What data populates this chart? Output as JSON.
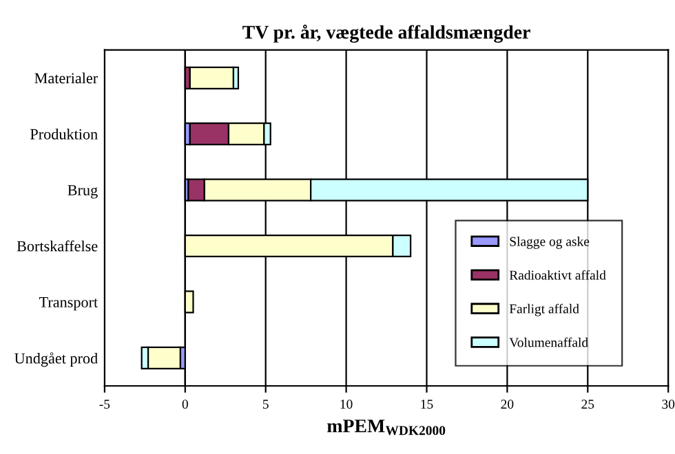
{
  "chart_data": {
    "type": "bar",
    "orientation": "horizontal",
    "stacked": true,
    "title": "TV pr. år, vægtede affaldsmængder",
    "xlabel": "mPEM$_{WDK2000}$",
    "categories": [
      "Materialer",
      "Produktion",
      "Brug",
      "Bortskaffelse",
      "Transport",
      "Undgået prod"
    ],
    "series": [
      {
        "name": "Slagge og aske",
        "color": "#9999ff",
        "values": [
          null,
          0.3,
          0.2,
          null,
          null,
          -0.3
        ]
      },
      {
        "name": "Radioaktivt affald",
        "color": "#993366",
        "values": [
          0.3,
          2.4,
          1.0,
          null,
          null,
          null
        ]
      },
      {
        "name": "Farligt affald",
        "color": "#ffffcc",
        "values": [
          2.7,
          2.2,
          6.6,
          12.9,
          0.5,
          -2.0
        ]
      },
      {
        "name": "Volumenaffald",
        "color": "#ccffff",
        "values": [
          0.3,
          0.4,
          17.2,
          1.1,
          null,
          -0.4
        ]
      }
    ],
    "xlim": [
      -5,
      30
    ],
    "xticks": [
      -5,
      0,
      5,
      10,
      15,
      20,
      25,
      30
    ],
    "grid": "x",
    "legend": "bottom right"
  }
}
